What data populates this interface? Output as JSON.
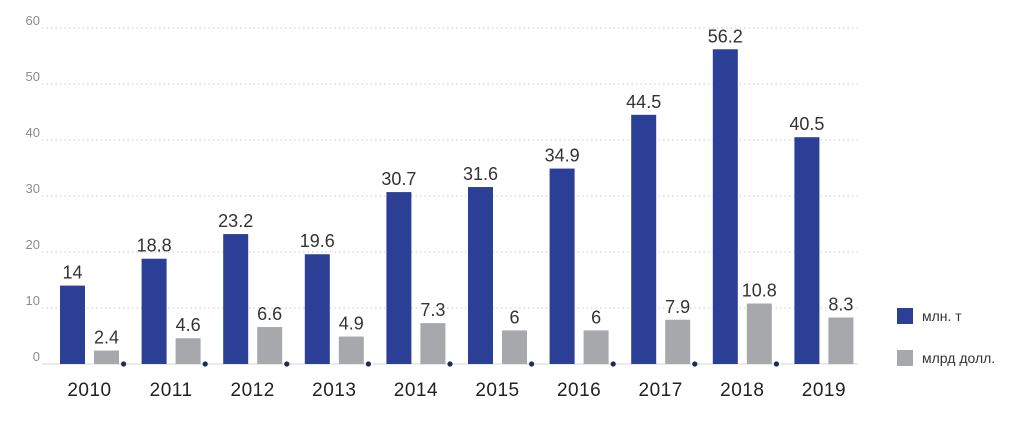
{
  "chart_data": {
    "type": "bar",
    "categories": [
      "2010",
      "2011",
      "2012",
      "2013",
      "2014",
      "2015",
      "2016",
      "2017",
      "2018",
      "2019"
    ],
    "series": [
      {
        "name": "млн. т",
        "color": "#2b3f96",
        "values": [
          14,
          18.8,
          23.2,
          19.6,
          30.7,
          31.6,
          34.9,
          44.5,
          56.2,
          40.5
        ]
      },
      {
        "name": "млрд долл.",
        "color": "#a6a8ab",
        "values": [
          2.4,
          4.6,
          6.6,
          4.9,
          7.3,
          6,
          6,
          7.9,
          10.8,
          8.3
        ]
      }
    ],
    "ylim": [
      0,
      60
    ],
    "yticks": [
      0,
      10,
      20,
      30,
      40,
      50,
      60
    ],
    "grid": "dotted-horizontal",
    "legend": "right"
  }
}
